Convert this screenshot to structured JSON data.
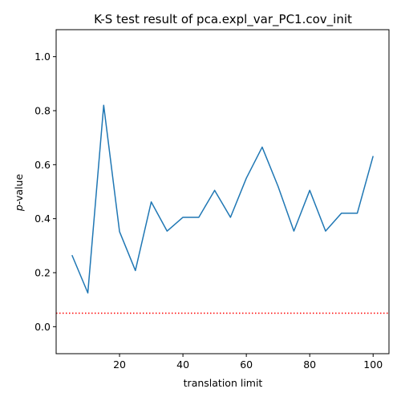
{
  "chart_data": {
    "type": "line",
    "title": "K-S test result of pca.expl_var_PC1.cov_init",
    "xlabel": "translation limit",
    "ylabel_italic": "p",
    "ylabel_rest": "-value",
    "xlim": [
      0,
      105
    ],
    "ylim": [
      -0.1,
      1.1
    ],
    "xticks": [
      20,
      40,
      60,
      80,
      100
    ],
    "yticks": [
      0.0,
      0.2,
      0.4,
      0.6,
      0.8,
      1.0
    ],
    "xtick_labels": [
      "20",
      "40",
      "60",
      "80",
      "100"
    ],
    "ytick_labels": [
      "0.0",
      "0.2",
      "0.4",
      "0.6",
      "0.8",
      "1.0"
    ],
    "grid": false,
    "series": [
      {
        "color": "#1f77b4",
        "x": [
          5,
          10,
          15,
          20,
          25,
          30,
          35,
          40,
          45,
          50,
          55,
          60,
          65,
          70,
          75,
          80,
          85,
          90,
          95,
          100
        ],
        "y": [
          0.265,
          0.125,
          0.82,
          0.352,
          0.208,
          0.462,
          0.354,
          0.405,
          0.405,
          0.505,
          0.405,
          0.55,
          0.665,
          0.52,
          0.354,
          0.505,
          0.354,
          0.42,
          0.42,
          0.632
        ]
      }
    ],
    "reference_line": {
      "y": 0.05,
      "color": "#ff0000",
      "style": "dotted"
    }
  }
}
